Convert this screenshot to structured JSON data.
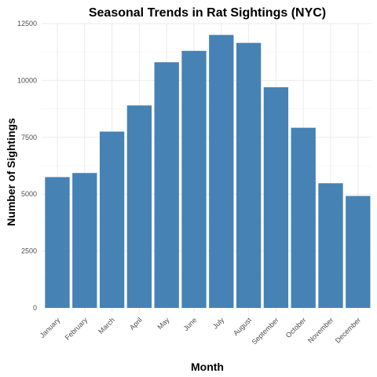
{
  "chart_data": {
    "type": "bar",
    "title": "Seasonal Trends in Rat Sightings (NYC)",
    "xlabel": "Month",
    "ylabel": "Number of Sightings",
    "categories": [
      "January",
      "February",
      "March",
      "April",
      "May",
      "June",
      "July",
      "August",
      "September",
      "October",
      "November",
      "December"
    ],
    "values": [
      5750,
      5930,
      7750,
      8900,
      10800,
      11300,
      12000,
      11650,
      9700,
      7920,
      5480,
      4920
    ],
    "ylim": [
      0,
      12500
    ],
    "yticks": [
      0,
      2500,
      5000,
      7500,
      10000,
      12500
    ],
    "grid": true,
    "legend": "none",
    "bar_color": "#4682B4"
  }
}
